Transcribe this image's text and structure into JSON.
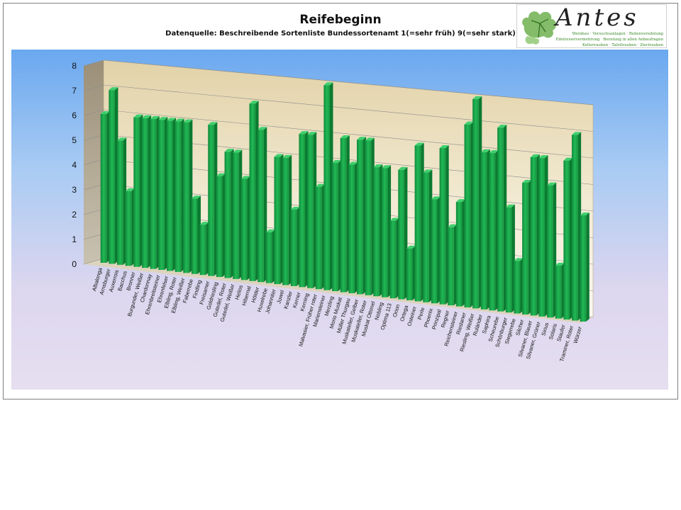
{
  "chart_data": {
    "type": "bar",
    "title": "Reifebeginn",
    "subtitle": "Datenquelle: Beschreibende Sortenliste Bundessortenamt 1(=sehr früh) 9(=sehr stark)",
    "ylim": [
      0,
      8
    ],
    "yticks": [
      "0",
      "1",
      "2",
      "3",
      "4",
      "5",
      "6",
      "7",
      "8"
    ],
    "grid": true,
    "bar_color": "#1aa64a",
    "categories": [
      "Albalonga",
      "Arnsburger",
      "Auxerrois",
      "Bacchus",
      "Bronner",
      "Burgunder, Weißer",
      "Chardonnay",
      "Ehrenbreitsteiner",
      "Ehrenfelser",
      "Elbling, Roter",
      "Elbling, Weißer",
      "Faberrebe",
      "Findling",
      "Freisamer",
      "Goldriesling",
      "Gutedel, Roter",
      "Gutedel, Weißer",
      "Helios",
      "Hibernal",
      "Hölder",
      "Huxelrebe",
      "Johanniter",
      "Juwel",
      "Kanzler",
      "Kerner",
      "Kerning",
      "Malvasier, Früher roter",
      "Mariensteiner",
      "Merzling",
      "Morio Muskat",
      "Müller Thurgau",
      "Muskateller, Gelber",
      "Muskateller, Roter",
      "Muskat Ottonel",
      "Nobling",
      "Optima 113",
      "Orion",
      "Ortega",
      "Osteiner",
      "Perle",
      "Phoenix",
      "Prinzipal",
      "Regner",
      "Reichensteiner",
      "Rieslaner",
      "Riesling, Weißer",
      "Ruländer",
      "Saphira",
      "Scheurebe",
      "Schönburger",
      "Siegerrebe",
      "Silcher",
      "Silvaner, Blauer",
      "Silvaner, Grüner",
      "Sirius",
      "Solaris",
      "Staufer",
      "Traminer, Roter",
      "Würzer"
    ],
    "values": [
      6,
      7,
      5,
      3,
      6,
      6,
      6,
      6,
      6,
      6,
      6,
      3,
      2,
      6,
      4,
      5,
      5,
      4,
      7,
      6,
      2,
      5,
      5,
      3,
      6,
      6,
      4,
      8,
      5,
      6,
      5,
      6,
      6,
      5,
      5,
      3,
      5,
      2,
      6,
      5,
      4,
      6,
      3,
      4,
      7,
      8,
      6,
      6,
      7,
      4,
      2,
      5,
      6,
      6,
      5,
      2,
      6,
      7,
      4
    ]
  },
  "logo": {
    "name": "Antes",
    "line1": "Weinbau · Versuchsanlagen · Rebenveredelung",
    "line2": "Edelreiservermehrung · Beratung in allen Anbaufragen",
    "line3": "Kelterrauben · Tafeltrauben · Ziertrauben"
  }
}
